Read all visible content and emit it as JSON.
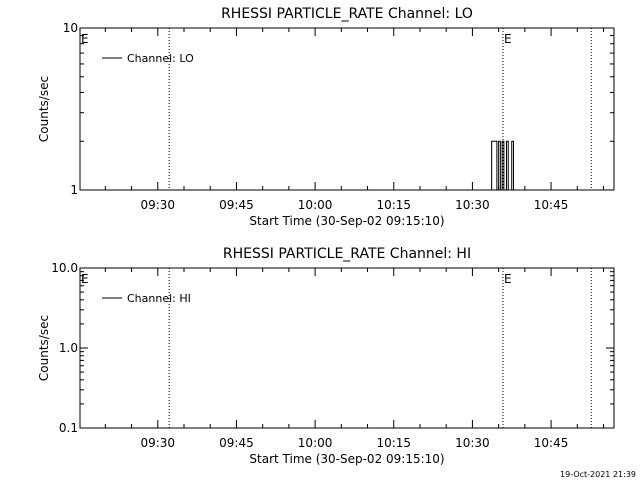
{
  "footer": {
    "timestamp": "19-Oct-2021 21:39"
  },
  "chart_data": [
    {
      "type": "line",
      "title": "RHESSI PARTICLE_RATE Channel: LO",
      "xlabel": "Start Time (30-Sep-02 09:15:10)",
      "ylabel": "Counts/sec",
      "yscale": "log",
      "ylim": [
        1,
        10
      ],
      "y_ticks": [
        1,
        10
      ],
      "y_tick_labels": [
        "1",
        "10"
      ],
      "xlim": [
        "09:15:10",
        "10:57:00"
      ],
      "x_ticks": [
        "09:30",
        "09:45",
        "10:00",
        "10:15",
        "10:30",
        "10:45"
      ],
      "grid": false,
      "legend": {
        "position": "top-left",
        "entries": [
          "Channel: LO"
        ]
      },
      "vlines": [
        {
          "x": "09:15:10",
          "label": "E"
        },
        {
          "x": "09:32:10",
          "label": ""
        },
        {
          "x": "10:35:50",
          "label": "E"
        },
        {
          "x": "10:52:40",
          "label": ""
        }
      ],
      "series": [
        {
          "name": "Channel: LO",
          "values": [
            [
              "10:33:40",
              2
            ],
            [
              "10:34:20",
              2
            ],
            [
              "10:34:40",
              1
            ],
            [
              "10:35:00",
              2
            ],
            [
              "10:35:20",
              1
            ],
            [
              "10:35:40",
              2
            ],
            [
              "10:36:00",
              1
            ],
            [
              "10:36:30",
              2
            ],
            [
              "10:36:50",
              1
            ],
            [
              "10:37:10",
              1
            ],
            [
              "10:37:30",
              2
            ],
            [
              "10:37:50",
              1
            ]
          ]
        }
      ]
    },
    {
      "type": "line",
      "title": "RHESSI PARTICLE_RATE Channel: HI",
      "xlabel": "Start Time (30-Sep-02 09:15:10)",
      "ylabel": "Counts/sec",
      "yscale": "log",
      "ylim": [
        0.1,
        10
      ],
      "y_ticks": [
        0.1,
        1.0,
        10.0
      ],
      "y_tick_labels": [
        "0.1",
        "1.0",
        "10.0"
      ],
      "xlim": [
        "09:15:10",
        "10:57:00"
      ],
      "x_ticks": [
        "09:30",
        "09:45",
        "10:00",
        "10:15",
        "10:30",
        "10:45"
      ],
      "grid": false,
      "legend": {
        "position": "top-left",
        "entries": [
          "Channel: HI"
        ]
      },
      "vlines": [
        {
          "x": "09:15:10",
          "label": "E"
        },
        {
          "x": "09:32:10",
          "label": ""
        },
        {
          "x": "10:35:50",
          "label": "E"
        },
        {
          "x": "10:52:40",
          "label": ""
        }
      ],
      "series": [
        {
          "name": "Channel: HI",
          "values": []
        }
      ]
    }
  ]
}
